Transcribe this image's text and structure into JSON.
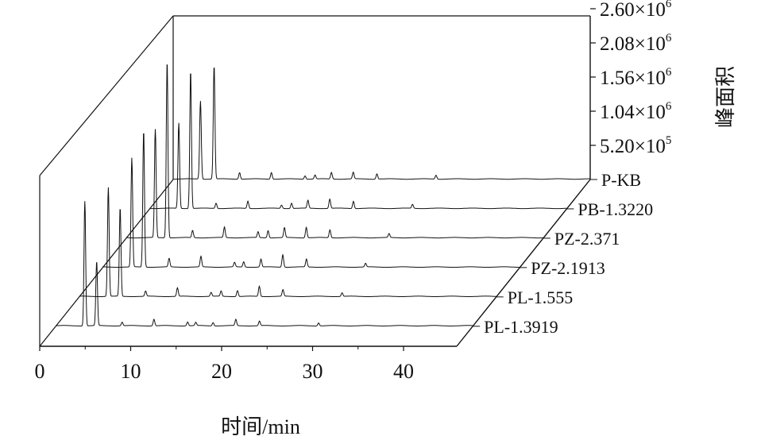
{
  "chart_data": {
    "type": "line",
    "style": "3D waterfall chromatogram",
    "xlabel": "时间/min",
    "zlabel": "峰面积",
    "xlim": [
      0,
      45
    ],
    "x_ticks": [
      0,
      10,
      20,
      30,
      40
    ],
    "z_ticks": [
      {
        "value": 520000,
        "mantissa": "5.20×10",
        "exp": "5"
      },
      {
        "value": 1040000,
        "mantissa": "1.04×10",
        "exp": "6"
      },
      {
        "value": 1560000,
        "mantissa": "1.56×10",
        "exp": "6"
      },
      {
        "value": 2080000,
        "mantissa": "2.08×10",
        "exp": "6"
      },
      {
        "value": 2600000,
        "mantissa": "2.60×10",
        "exp": "6"
      }
    ],
    "zlim": [
      0,
      2600000
    ],
    "series_labels": [
      "PL-1.3919",
      "PL-1.555",
      "PZ-2.1913",
      "PZ-2.371",
      "PB-1.3220",
      "P-KB"
    ],
    "series": [
      {
        "name": "PL-1.3919",
        "peaks": [
          [
            3.2,
            1900000
          ],
          [
            4.5,
            980000
          ],
          [
            7.3,
            55000
          ],
          [
            10.8,
            100000
          ],
          [
            14.5,
            60000
          ],
          [
            15.4,
            50000
          ],
          [
            17.3,
            50000
          ],
          [
            19.8,
            95000
          ],
          [
            22.4,
            70000
          ],
          [
            28.9,
            45000
          ]
        ]
      },
      {
        "name": "PL-1.555",
        "peaks": [
          [
            3.2,
            1660000
          ],
          [
            4.5,
            1350000
          ],
          [
            7.3,
            80000
          ],
          [
            10.8,
            130000
          ],
          [
            14.5,
            60000
          ],
          [
            15.6,
            80000
          ],
          [
            17.4,
            90000
          ],
          [
            19.8,
            155000
          ],
          [
            22.4,
            100000
          ],
          [
            28.9,
            55000
          ]
        ]
      },
      {
        "name": "PZ-2.1913",
        "peaks": [
          [
            3.2,
            1660000
          ],
          [
            4.5,
            2080000
          ],
          [
            7.3,
            130000
          ],
          [
            10.8,
            160000
          ],
          [
            14.5,
            70000
          ],
          [
            15.5,
            80000
          ],
          [
            17.4,
            120000
          ],
          [
            19.8,
            190000
          ],
          [
            22.4,
            120000
          ],
          [
            28.9,
            55000
          ]
        ]
      },
      {
        "name": "PZ-2.371",
        "peaks": [
          [
            3.2,
            1650000
          ],
          [
            4.5,
            2700000
          ],
          [
            7.3,
            110000
          ],
          [
            10.8,
            160000
          ],
          [
            14.5,
            90000
          ],
          [
            15.6,
            110000
          ],
          [
            17.4,
            150000
          ],
          [
            19.8,
            160000
          ],
          [
            22.4,
            120000
          ],
          [
            28.9,
            60000
          ]
        ]
      },
      {
        "name": "PB-1.3220",
        "peaks": [
          [
            3.2,
            1300000
          ],
          [
            4.5,
            2100000
          ],
          [
            7.3,
            80000
          ],
          [
            10.8,
            110000
          ],
          [
            14.5,
            50000
          ],
          [
            15.6,
            80000
          ],
          [
            17.4,
            120000
          ],
          [
            19.8,
            140000
          ],
          [
            22.4,
            110000
          ],
          [
            28.9,
            60000
          ]
        ]
      },
      {
        "name": "P-KB",
        "peaks": [
          [
            3.0,
            1190000
          ],
          [
            4.5,
            1730000
          ],
          [
            7.3,
            100000
          ],
          [
            10.8,
            100000
          ],
          [
            14.5,
            50000
          ],
          [
            15.6,
            60000
          ],
          [
            17.4,
            100000
          ],
          [
            19.8,
            100000
          ],
          [
            22.4,
            80000
          ],
          [
            28.9,
            60000
          ]
        ]
      }
    ]
  }
}
